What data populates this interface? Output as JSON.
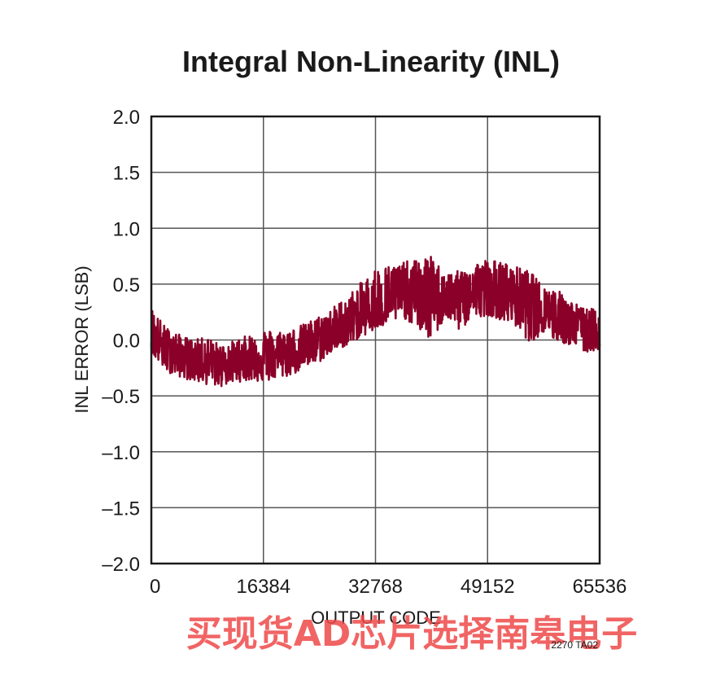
{
  "chart_data": {
    "type": "line",
    "title": "Integral Non-Linearity (INL)",
    "xlabel": "OUTPUT CODE",
    "ylabel": "INL ERROR (LSB)",
    "xlim": [
      0,
      65536
    ],
    "ylim": [
      -2.0,
      2.0
    ],
    "x_ticks": [
      0,
      16384,
      32768,
      49152,
      65536
    ],
    "x_tick_labels": [
      "0",
      "16384",
      "32768",
      "49152",
      "65536"
    ],
    "y_ticks": [
      2.0,
      1.5,
      1.0,
      0.5,
      0.0,
      -0.5,
      -1.0,
      -1.5,
      -2.0
    ],
    "y_tick_labels": [
      "2.0",
      "1.5",
      "1.0",
      "0.5",
      "0.0",
      "–0.5",
      "–1.0",
      "–1.5",
      "–2.0"
    ],
    "grid": true,
    "series": [
      {
        "color": "#8b0028",
        "x": [
          0,
          2048,
          4096,
          6144,
          8192,
          10240,
          12288,
          14336,
          16384,
          18432,
          20480,
          22528,
          24576,
          26624,
          28672,
          30720,
          32768,
          34816,
          36864,
          38912,
          40960,
          43008,
          45056,
          47104,
          49152,
          51200,
          53248,
          55296,
          57344,
          59392,
          61440,
          63488,
          65536
        ],
        "y_center": [
          0.02,
          -0.08,
          -0.14,
          -0.17,
          -0.18,
          -0.19,
          -0.18,
          -0.17,
          -0.15,
          -0.13,
          -0.1,
          -0.06,
          -0.02,
          0.05,
          0.12,
          0.2,
          0.27,
          0.33,
          0.38,
          0.4,
          0.4,
          0.38,
          0.37,
          0.4,
          0.42,
          0.4,
          0.37,
          0.33,
          0.28,
          0.22,
          0.16,
          0.1,
          0.02
        ],
        "y_max": [
          0.3,
          0.12,
          0.05,
          0.0,
          0.03,
          -0.05,
          0.0,
          0.05,
          0.1,
          0.08,
          0.1,
          0.15,
          0.22,
          0.3,
          0.4,
          0.52,
          0.65,
          0.68,
          0.7,
          0.72,
          0.75,
          0.6,
          0.62,
          0.7,
          0.73,
          0.7,
          0.66,
          0.62,
          0.48,
          0.45,
          0.35,
          0.28,
          0.28
        ],
        "y_min": [
          -0.12,
          -0.28,
          -0.33,
          -0.37,
          -0.4,
          -0.42,
          -0.38,
          -0.36,
          -0.38,
          -0.35,
          -0.32,
          -0.25,
          -0.2,
          -0.1,
          -0.05,
          0.03,
          0.08,
          0.15,
          0.2,
          0.1,
          -0.02,
          0.2,
          0.08,
          0.2,
          0.22,
          0.18,
          0.12,
          -0.02,
          0.05,
          -0.02,
          -0.05,
          -0.12,
          -0.08
        ]
      }
    ]
  },
  "figure_id": "2270 TA02",
  "watermark": "买现货AD芯片选择南皋电子"
}
